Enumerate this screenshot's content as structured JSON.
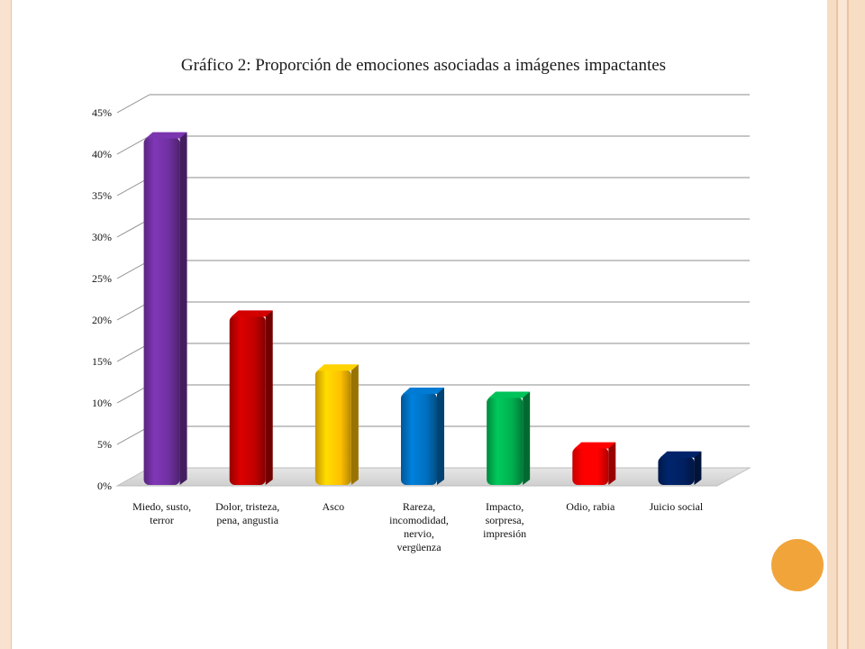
{
  "chart_data": {
    "type": "bar",
    "title": "Gráfico 2: Proporción de emociones asociadas a imágenes impactantes",
    "xlabel": "",
    "ylabel": "",
    "ylim": [
      0,
      45
    ],
    "yticks": [
      "0%",
      "5%",
      "10%",
      "15%",
      "20%",
      "25%",
      "30%",
      "35%",
      "40%",
      "45%"
    ],
    "grid": true,
    "categories": [
      "Miedo, susto, terror",
      "Dolor, tristeza, pena, angustia",
      "Asco",
      "Rareza, incomodidad, nervio, vergüenza",
      "Impacto, sorpresa, impresión",
      "Odio, rabia",
      "Juicio social"
    ],
    "category_lines": [
      [
        "Miedo, susto,",
        "terror"
      ],
      [
        "Dolor, tristeza,",
        "pena, angustia"
      ],
      [
        "Asco"
      ],
      [
        "Rareza,",
        "incomodidad,",
        "nervio,",
        "vergüenza"
      ],
      [
        "Impacto,",
        "sorpresa,",
        "impresión"
      ],
      [
        "Odio, rabia"
      ],
      [
        "Juicio social"
      ]
    ],
    "values": [
      42,
      20.5,
      14,
      11.2,
      10.7,
      4.6,
      3.5
    ],
    "colors": [
      "#7030a0",
      "#c00000",
      "#ffc000",
      "#0070c0",
      "#00b050",
      "#ff0000",
      "#002060"
    ]
  }
}
